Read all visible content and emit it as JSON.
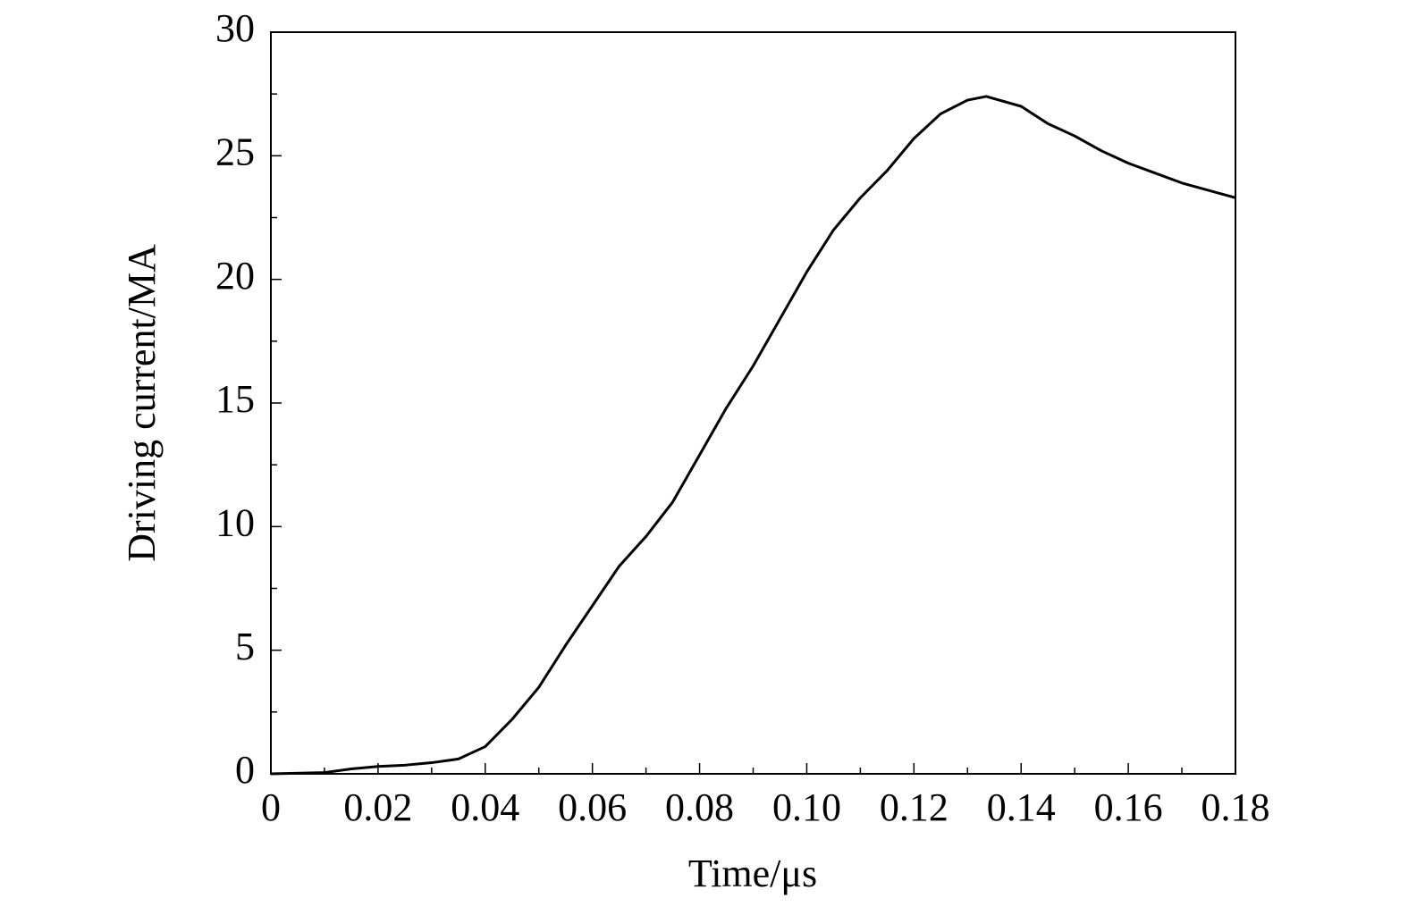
{
  "chart_data": {
    "type": "line",
    "x_label": "Time/μs",
    "y_label": "Driving current/MA",
    "xlim": [
      0,
      0.18
    ],
    "ylim": [
      0,
      30
    ],
    "xticks": [
      0,
      0.02,
      0.04,
      0.06,
      0.08,
      {
        "value": 0.1,
        "label": "0.10"
      },
      0.12,
      0.14,
      0.16,
      0.18
    ],
    "xminorticks": [
      0.01,
      0.03,
      0.05,
      0.07,
      0.09,
      0.11,
      0.13,
      0.15,
      0.17
    ],
    "yticks": [
      0,
      5,
      10,
      15,
      20,
      25,
      30
    ],
    "yminorticks": [
      2.5,
      7.5,
      12.5,
      17.5,
      22.5,
      27.5
    ],
    "grid": false,
    "series": [
      {
        "color": "#000000",
        "x": [
          0,
          0.01,
          0.015,
          0.02,
          0.025,
          0.03,
          0.035,
          0.04,
          0.045,
          0.05,
          0.055,
          0.06,
          0.065,
          0.07,
          0.075,
          0.08,
          0.085,
          0.09,
          0.095,
          0.1,
          0.105,
          0.11,
          0.115,
          0.12,
          0.125,
          0.13,
          0.1335,
          0.14,
          0.145,
          0.15,
          0.155,
          0.16,
          0.165,
          0.17,
          0.175,
          0.18
        ],
        "values": [
          0,
          0.05,
          0.2,
          0.3,
          0.35,
          0.45,
          0.6,
          1.1,
          2.2,
          3.5,
          5.2,
          6.8,
          8.4,
          9.6,
          11.0,
          12.9,
          14.8,
          16.5,
          18.4,
          20.3,
          22.0,
          23.3,
          24.4,
          25.7,
          26.7,
          27.25,
          27.4,
          27.0,
          26.3,
          25.8,
          25.2,
          24.7,
          24.3,
          23.9,
          23.6,
          23.3
        ]
      }
    ]
  }
}
